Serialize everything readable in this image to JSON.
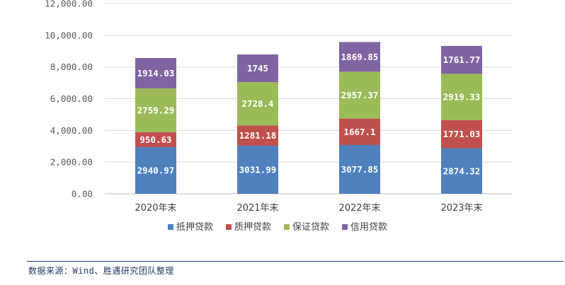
{
  "chart_data": {
    "type": "bar",
    "stacked": true,
    "categories": [
      "2020年末",
      "2021年末",
      "2022年末",
      "2023年末"
    ],
    "series": [
      {
        "name": "抵押贷款",
        "color": "#4f81bd",
        "values": [
          2940.97,
          3031.99,
          3077.85,
          2874.32
        ],
        "labels": [
          "2940.97",
          "3031.99",
          "3077.85",
          "2874.32"
        ]
      },
      {
        "name": "质押贷款",
        "color": "#c0504d",
        "values": [
          950.63,
          1281.18,
          1667.1,
          1771.03
        ],
        "labels": [
          "950.63",
          "1281.18",
          "1667.1",
          "1771.03"
        ]
      },
      {
        "name": "保证贷款",
        "color": "#9bbb59",
        "values": [
          2759.29,
          2728.4,
          2957.37,
          2919.33
        ],
        "labels": [
          "2759.29",
          "2728.4",
          "2957.37",
          "2919.33"
        ]
      },
      {
        "name": "信用贷款",
        "color": "#8064a2",
        "values": [
          1914.03,
          1745,
          1869.85,
          1761.77
        ],
        "labels": [
          "1914.03",
          "1745",
          "1869.85",
          "1761.77"
        ]
      }
    ],
    "yticks": [
      "0.00",
      "2,000.00",
      "4,000.00",
      "6,000.00",
      "8,000.00",
      "10,000.00",
      "12,000.00"
    ],
    "ylim": [
      0,
      12000
    ],
    "grid": true,
    "legend": "bottom"
  },
  "source": "数据来源：Wind、胜遇研究团队整理"
}
